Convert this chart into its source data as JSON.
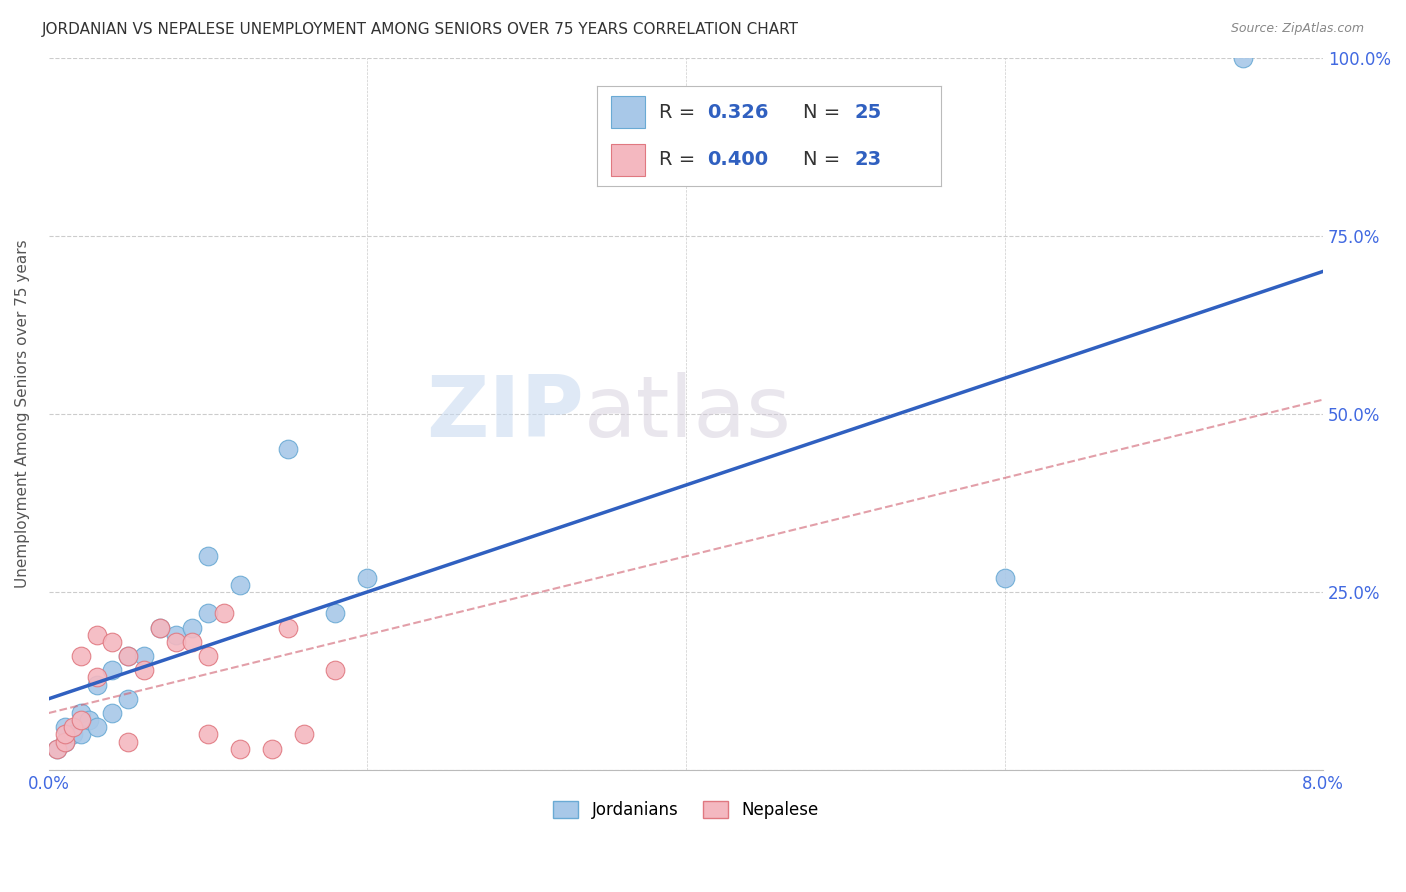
{
  "title": "JORDANIAN VS NEPALESE UNEMPLOYMENT AMONG SENIORS OVER 75 YEARS CORRELATION CHART",
  "source": "Source: ZipAtlas.com",
  "ylabel": "Unemployment Among Seniors over 75 years",
  "xlim": [
    0.0,
    0.08
  ],
  "ylim": [
    0.0,
    1.0
  ],
  "xticks": [
    0.0,
    0.02,
    0.04,
    0.06,
    0.08
  ],
  "xtick_labels": [
    "0.0%",
    "",
    "",
    "",
    "8.0%"
  ],
  "yticks": [
    0.0,
    0.25,
    0.5,
    0.75,
    1.0
  ],
  "ytick_labels_right": [
    "",
    "25.0%",
    "50.0%",
    "75.0%",
    "100.0%"
  ],
  "watermark_zip": "ZIP",
  "watermark_atlas": "atlas",
  "blue_color": "#a8c8e8",
  "blue_edge": "#6aaad4",
  "pink_color": "#f4b8c0",
  "pink_edge": "#e07880",
  "line_blue": "#3060c0",
  "line_pink": "#d06070",
  "R_blue": 0.326,
  "N_blue": 25,
  "R_pink": 0.4,
  "N_pink": 23,
  "jordanian_x": [
    0.0005,
    0.001,
    0.001,
    0.0015,
    0.002,
    0.002,
    0.0025,
    0.003,
    0.003,
    0.004,
    0.004,
    0.005,
    0.005,
    0.006,
    0.007,
    0.008,
    0.009,
    0.01,
    0.01,
    0.012,
    0.015,
    0.018,
    0.02,
    0.06,
    0.075
  ],
  "jordanian_y": [
    0.03,
    0.04,
    0.06,
    0.05,
    0.05,
    0.08,
    0.07,
    0.06,
    0.12,
    0.08,
    0.14,
    0.1,
    0.16,
    0.16,
    0.2,
    0.19,
    0.2,
    0.22,
    0.3,
    0.26,
    0.45,
    0.22,
    0.27,
    0.27,
    1.0
  ],
  "nepalese_x": [
    0.0005,
    0.001,
    0.001,
    0.0015,
    0.002,
    0.002,
    0.003,
    0.003,
    0.004,
    0.005,
    0.005,
    0.006,
    0.007,
    0.008,
    0.009,
    0.01,
    0.01,
    0.011,
    0.012,
    0.014,
    0.015,
    0.016,
    0.018
  ],
  "nepalese_y": [
    0.03,
    0.04,
    0.05,
    0.06,
    0.07,
    0.16,
    0.13,
    0.19,
    0.18,
    0.16,
    0.04,
    0.14,
    0.2,
    0.18,
    0.18,
    0.16,
    0.05,
    0.22,
    0.03,
    0.03,
    0.2,
    0.05,
    0.14
  ],
  "blue_line_x": [
    0.0,
    0.08
  ],
  "blue_line_y": [
    0.1,
    0.7
  ],
  "pink_line_x": [
    0.0,
    0.08
  ],
  "pink_line_y": [
    0.08,
    0.52
  ],
  "background_color": "#ffffff",
  "grid_color": "#cccccc",
  "title_color": "#333333",
  "tick_color": "#4169E1",
  "legend_blue_label": "R =  0.326   N = 25",
  "legend_pink_label": "R =  0.400   N = 23"
}
